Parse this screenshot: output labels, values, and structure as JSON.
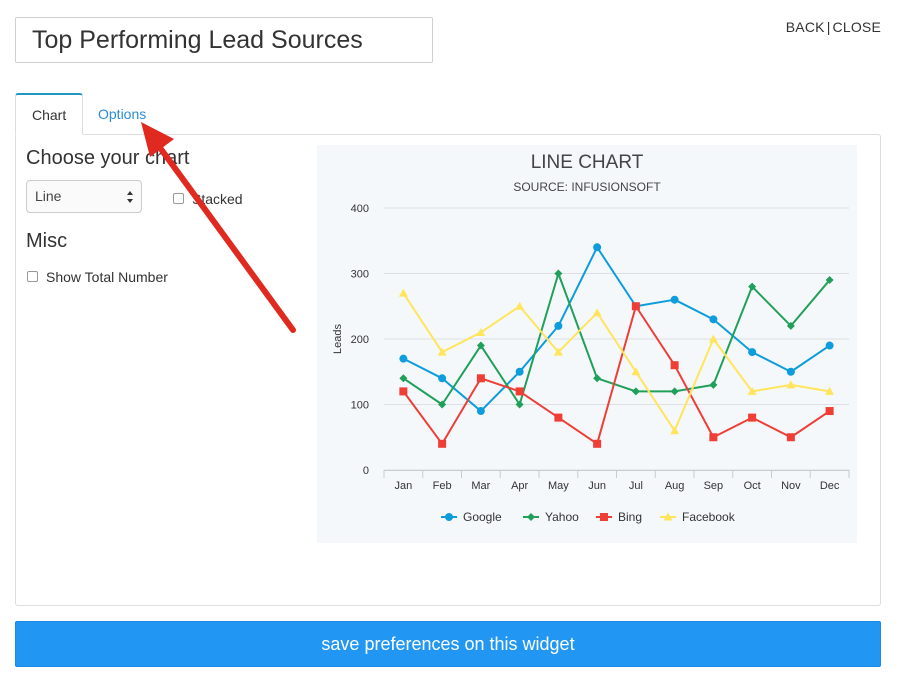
{
  "header": {
    "title_value": "Top Performing Lead Sources",
    "back_label": "BACK",
    "separator": "|",
    "close_label": "CLOSE"
  },
  "tabs": [
    {
      "label": "Chart",
      "active": true
    },
    {
      "label": "Options",
      "active": false
    }
  ],
  "options": {
    "choose_heading": "Choose your chart",
    "chart_type_selected": "Line",
    "stacked_label": "Stacked",
    "stacked_checked": false,
    "misc_heading": "Misc",
    "show_total_label": "Show Total Number",
    "show_total_checked": false
  },
  "save_button_label": "save preferences on this widget",
  "annotation": {
    "type": "red-arrow",
    "points_to": "Options tab",
    "color": "#e0291f"
  },
  "chart_data": {
    "type": "line",
    "title": "LINE CHART",
    "subtitle": "SOURCE: INFUSIONSOFT",
    "xlabel": "",
    "ylabel": "Leads",
    "ylim": [
      0,
      400
    ],
    "yticks": [
      0,
      100,
      200,
      300,
      400
    ],
    "grid": true,
    "legend_position": "bottom",
    "categories": [
      "Jan",
      "Feb",
      "Mar",
      "Apr",
      "May",
      "Jun",
      "Jul",
      "Aug",
      "Sep",
      "Oct",
      "Nov",
      "Dec"
    ],
    "series": [
      {
        "name": "Google",
        "color": "#0e9ddc",
        "marker": "circle",
        "values": [
          170,
          140,
          90,
          150,
          220,
          340,
          250,
          260,
          230,
          180,
          150,
          190
        ]
      },
      {
        "name": "Yahoo",
        "color": "#20a05a",
        "marker": "diamond",
        "values": [
          140,
          100,
          190,
          100,
          300,
          140,
          120,
          120,
          130,
          280,
          220,
          290
        ]
      },
      {
        "name": "Bing",
        "color": "#ef3e36",
        "marker": "square",
        "values": [
          120,
          40,
          140,
          120,
          80,
          40,
          250,
          160,
          50,
          80,
          50,
          90
        ]
      },
      {
        "name": "Facebook",
        "color": "#ffe55c",
        "marker": "triangle",
        "values": [
          270,
          180,
          210,
          250,
          180,
          240,
          150,
          60,
          200,
          120,
          130,
          120
        ]
      }
    ]
  }
}
